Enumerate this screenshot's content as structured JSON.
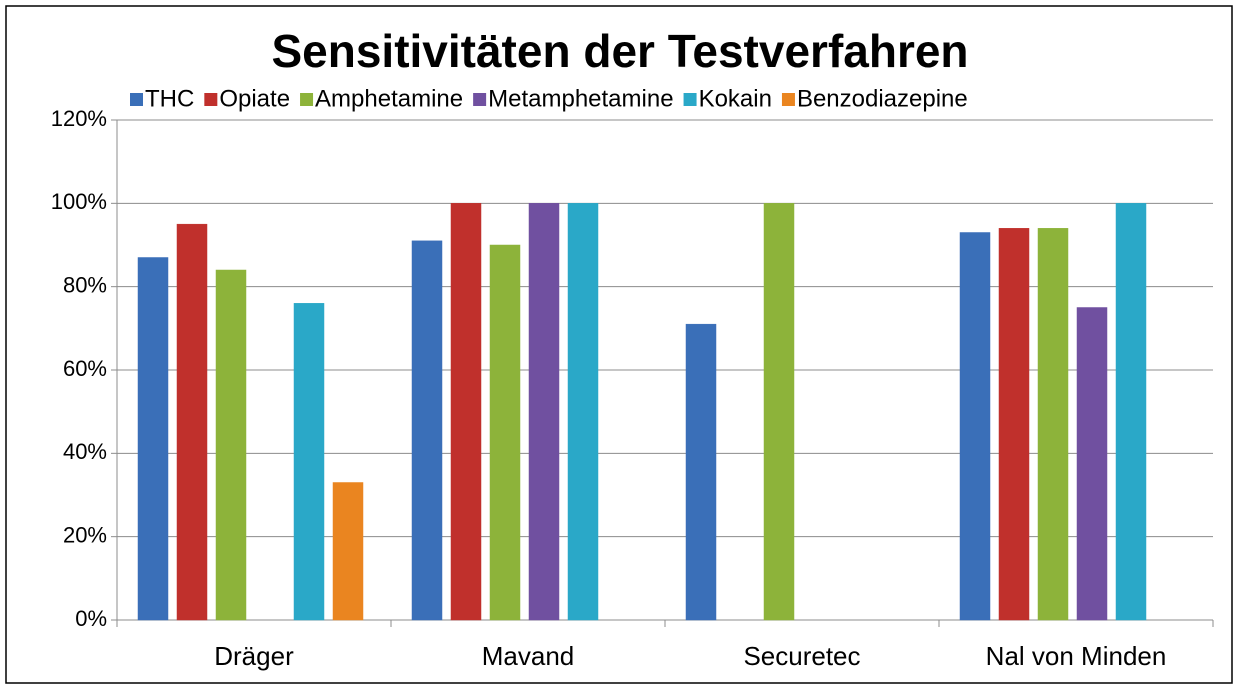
{
  "chart_data": {
    "type": "bar",
    "title": "Sensitivitäten der Testverfahren",
    "categories": [
      "Dräger",
      "Mavand",
      "Securetec",
      "Nal von Minden"
    ],
    "series": [
      {
        "name": "THC",
        "color": "#3a6fb8",
        "values": [
          87,
          91,
          71,
          93
        ]
      },
      {
        "name": "Opiate",
        "color": "#c0302c",
        "values": [
          95,
          100,
          null,
          94
        ]
      },
      {
        "name": "Amphetamine",
        "color": "#8db33a",
        "values": [
          84,
          90,
          100,
          94
        ]
      },
      {
        "name": "Metamphetamine",
        "color": "#7050a0",
        "values": [
          null,
          100,
          null,
          75
        ]
      },
      {
        "name": "Kokain",
        "color": "#2aa8c8",
        "values": [
          76,
          100,
          null,
          100
        ]
      },
      {
        "name": "Benzodiazepine",
        "color": "#ea8520",
        "values": [
          33,
          null,
          null,
          null
        ]
      }
    ],
    "ylim": [
      0,
      120
    ],
    "yticks": [
      {
        "value": 0,
        "label": "0%"
      },
      {
        "value": 20,
        "label": "20%"
      },
      {
        "value": 40,
        "label": "40%"
      },
      {
        "value": 60,
        "label": "60%"
      },
      {
        "value": 80,
        "label": "80%"
      },
      {
        "value": 100,
        "label": "100%"
      },
      {
        "value": 120,
        "label": "120%"
      }
    ],
    "grid": true,
    "legend": "top"
  }
}
